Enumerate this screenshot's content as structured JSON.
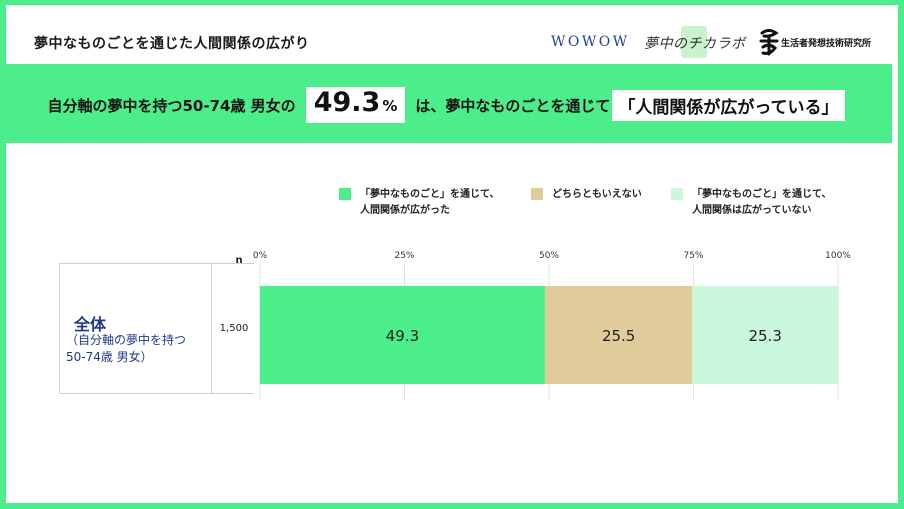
{
  "header": {
    "title": "夢中なものごとを通じた人間関係の広がり",
    "logo_wowow": "WOWOW",
    "logo_lab": "夢中のチカラボ",
    "logo_institute": "生活者発想技術研究所"
  },
  "banner": {
    "prefix": "自分軸の夢中を持つ50-74歳 男女の",
    "value": "49.3",
    "unit": "%",
    "middle": "は、夢中なものごとを通じて",
    "quote": "「人間関係が広がっている」"
  },
  "legend": [
    {
      "label": "「夢中なものごと」を通じて、\n人間関係が広がった",
      "color": "#4cee8c"
    },
    {
      "label": "どちらともいえない",
      "color": "#e0cc9a"
    },
    {
      "label": "「夢中なものごと」を通じて、\n人間関係は広がっていない",
      "color": "#c9f8dc"
    }
  ],
  "row": {
    "name": "全体",
    "sub": "（自分軸の夢中を持つ\n  50-74歳 男女）",
    "n": "1,500"
  },
  "chart_data": {
    "type": "bar",
    "orientation": "horizontal",
    "stacked": true,
    "categories": [
      "全体"
    ],
    "n_header": "n",
    "xlim": [
      0,
      100
    ],
    "xticks": [
      "0%",
      "25%",
      "50%",
      "75%",
      "100%"
    ],
    "series": [
      {
        "name": "「夢中なものごと」を通じて、人間関係が広がった",
        "values": [
          49.3
        ],
        "color": "#4cee8c"
      },
      {
        "name": "どちらともいえない",
        "values": [
          25.5
        ],
        "color": "#e0cc9a"
      },
      {
        "name": "「夢中なものごと」を通じて、人間関係は広がっていない",
        "values": [
          25.3
        ],
        "color": "#c9f8dc"
      }
    ],
    "data_labels": [
      "49.3",
      "25.5",
      "25.3"
    ]
  }
}
